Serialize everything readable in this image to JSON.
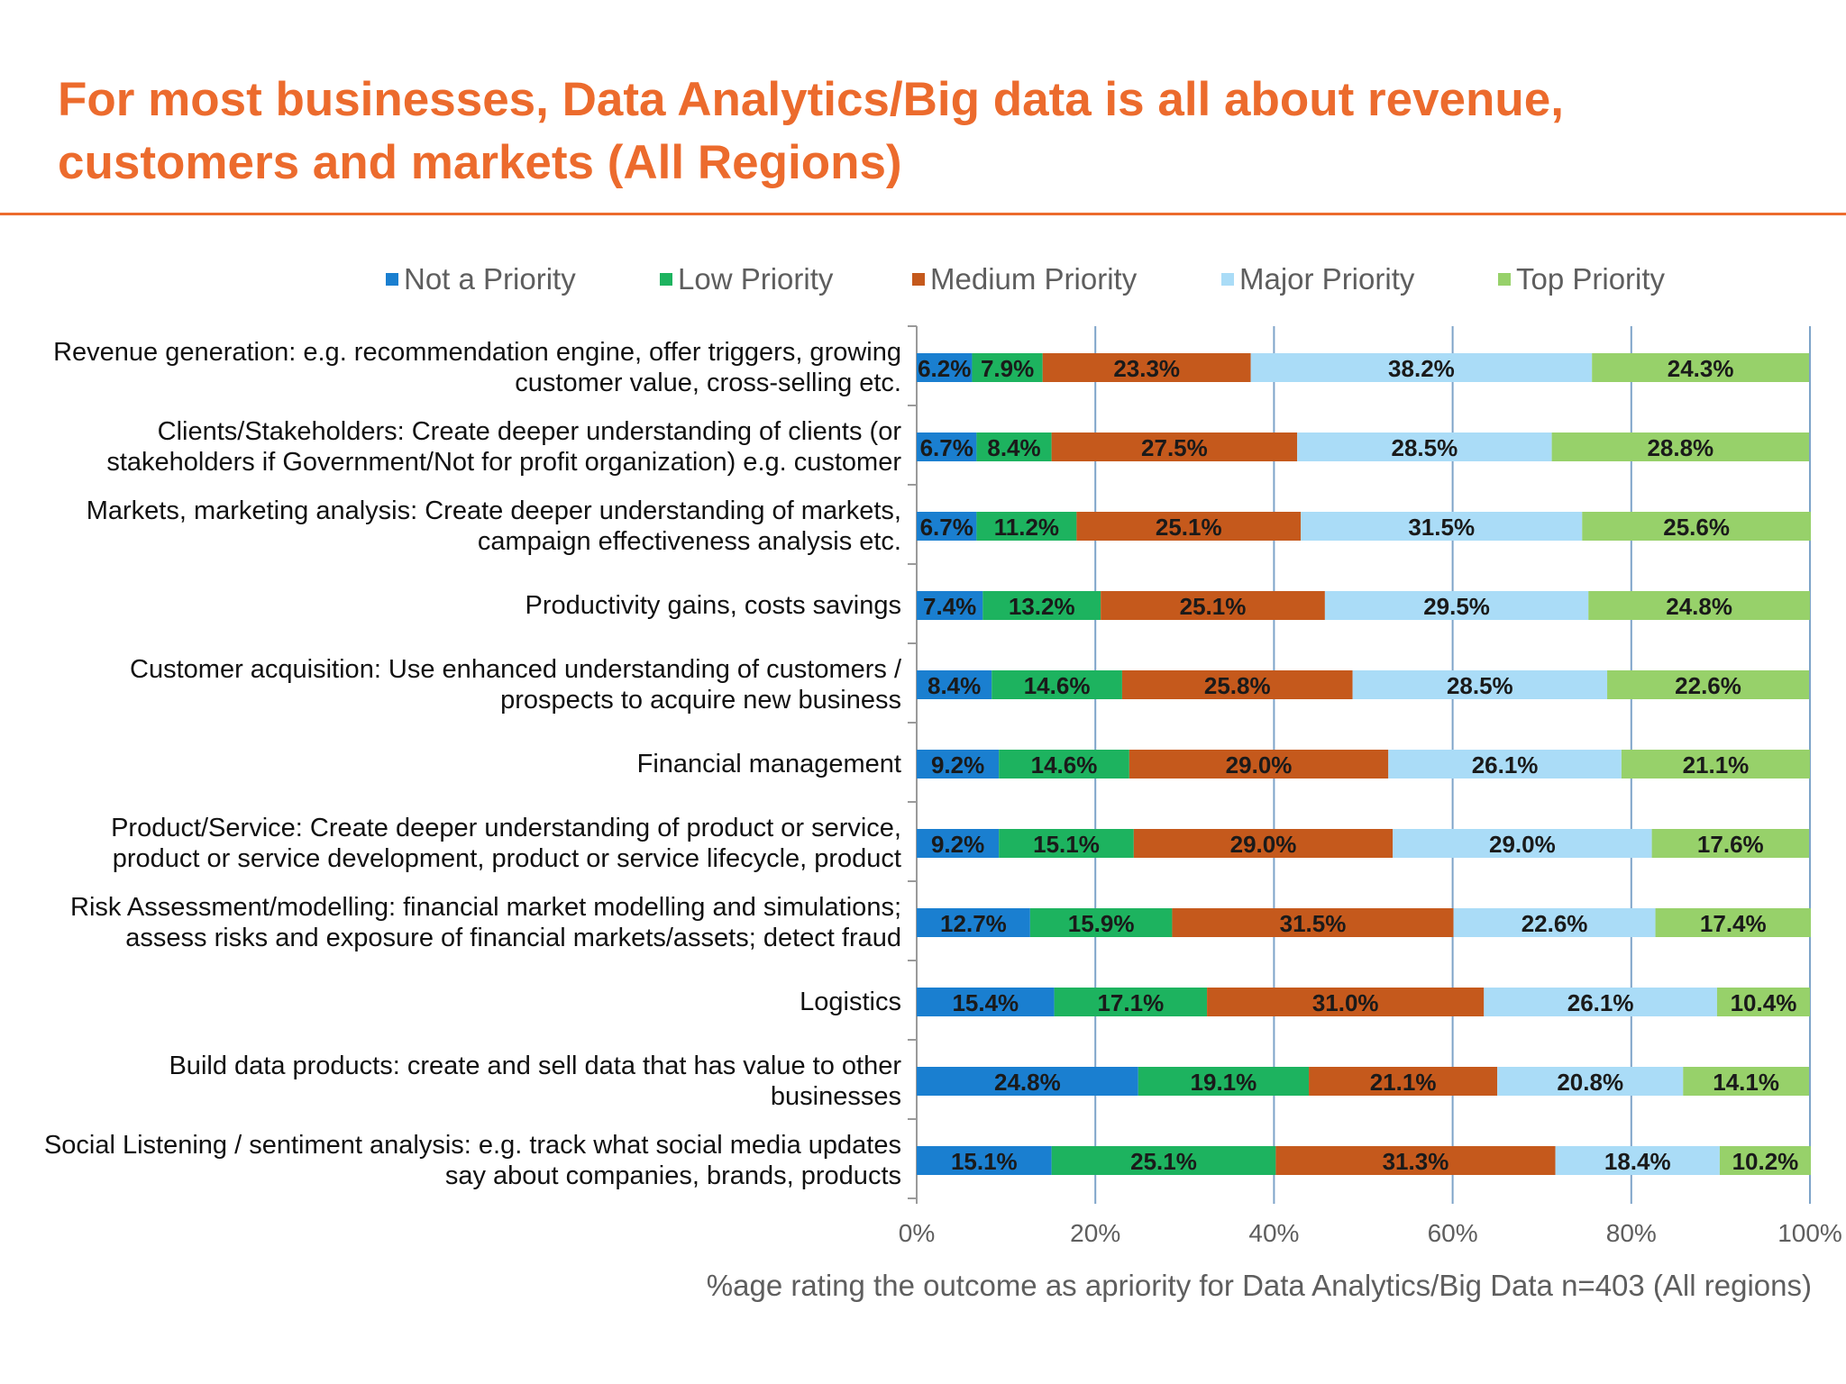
{
  "header": {
    "title_line1": "For most businesses, Data Analytics/Big data is all about revenue,",
    "title_line2": "customers and markets (All Regions)"
  },
  "chart_data": {
    "type": "bar",
    "orientation": "horizontal",
    "stacked": true,
    "title": "For most businesses, Data Analytics/Big data is all about revenue, customers and markets (All Regions)",
    "xlabel": "%age rating the outcome as apriority for Data Analytics/Big Data n=403 (All regions)",
    "ylabel": "",
    "xlim": [
      0,
      100
    ],
    "xticks": [
      "0%",
      "20%",
      "40%",
      "60%",
      "80%",
      "100%"
    ],
    "grid": true,
    "legend_position": "top",
    "categories": [
      [
        "Revenue generation: e.g. recommendation engine, offer triggers, growing",
        "customer value, cross-selling etc."
      ],
      [
        "Clients/Stakeholders: Create deeper understanding of clients (or",
        "stakeholders if Government/Not for profit organization) e.g. customer"
      ],
      [
        "Markets, marketing analysis: Create deeper understanding of markets,",
        "campaign effectiveness analysis etc."
      ],
      [
        "Productivity gains, costs savings"
      ],
      [
        "Customer acquisition: Use enhanced understanding of customers /",
        "prospects to acquire new business"
      ],
      [
        "Financial management"
      ],
      [
        "Product/Service: Create deeper understanding of product or service,",
        "product or service development, product or service lifecycle, product"
      ],
      [
        "Risk Assessment/modelling:  financial market modelling and simulations;",
        "assess risks and exposure of financial markets/assets; detect fraud"
      ],
      [
        "Logistics"
      ],
      [
        "Build data products: create and sell data that has value to other",
        "businesses"
      ],
      [
        "Social Listening / sentiment analysis: e.g. track what social media updates",
        "say about companies, brands, products"
      ]
    ],
    "series": [
      {
        "name": "Not a Priority",
        "color": "#1a7fd0",
        "values": [
          6.2,
          6.7,
          6.7,
          7.4,
          8.4,
          9.2,
          9.2,
          12.7,
          15.4,
          24.8,
          15.1
        ],
        "labels": [
          "6.2%",
          "6.7%",
          "6.7%",
          "7.4%",
          "8.4%",
          "9.2%",
          "9.2%",
          "12.7%",
          "15.4%",
          "24.8%",
          "15.1%"
        ]
      },
      {
        "name": "Low Priority",
        "color": "#1db35f",
        "values": [
          7.9,
          8.4,
          11.2,
          13.2,
          14.6,
          14.6,
          15.1,
          15.9,
          17.1,
          19.1,
          25.1
        ],
        "labels": [
          "7.9%",
          "8.4%",
          "11.2%",
          "13.2%",
          "14.6%",
          "14.6%",
          "15.1%",
          "15.9%",
          "17.1%",
          "19.1%",
          "25.1%"
        ]
      },
      {
        "name": "Medium Priority",
        "color": "#c5591c",
        "values": [
          23.3,
          27.5,
          25.1,
          25.1,
          25.8,
          29.0,
          29.0,
          31.5,
          31.0,
          21.1,
          31.3
        ],
        "labels": [
          "23.3%",
          "27.5%",
          "25.1%",
          "25.1%",
          "25.8%",
          "29.0%",
          "29.0%",
          "31.5%",
          "31.0%",
          "21.1%",
          "31.3%"
        ]
      },
      {
        "name": "Major Priority",
        "color": "#aadcf7",
        "values": [
          38.2,
          28.5,
          31.5,
          29.5,
          28.5,
          26.1,
          29.0,
          22.6,
          26.1,
          20.8,
          18.4
        ],
        "labels": [
          "38.2%",
          "28.5%",
          "31.5%",
          "29.5%",
          "28.5%",
          "26.1%",
          "29.0%",
          "22.6%",
          "26.1%",
          "20.8%",
          "18.4%"
        ]
      },
      {
        "name": "Top Priority",
        "color": "#97d16a",
        "values": [
          24.3,
          28.8,
          25.6,
          24.8,
          22.6,
          21.1,
          17.6,
          17.4,
          10.4,
          14.1,
          10.2
        ],
        "labels": [
          "24.3%",
          "28.8%",
          "25.6%",
          "24.8%",
          "22.6%",
          "21.1%",
          "17.6%",
          "17.4%",
          "10.4%",
          "14.1%",
          "10.2%"
        ]
      }
    ]
  }
}
